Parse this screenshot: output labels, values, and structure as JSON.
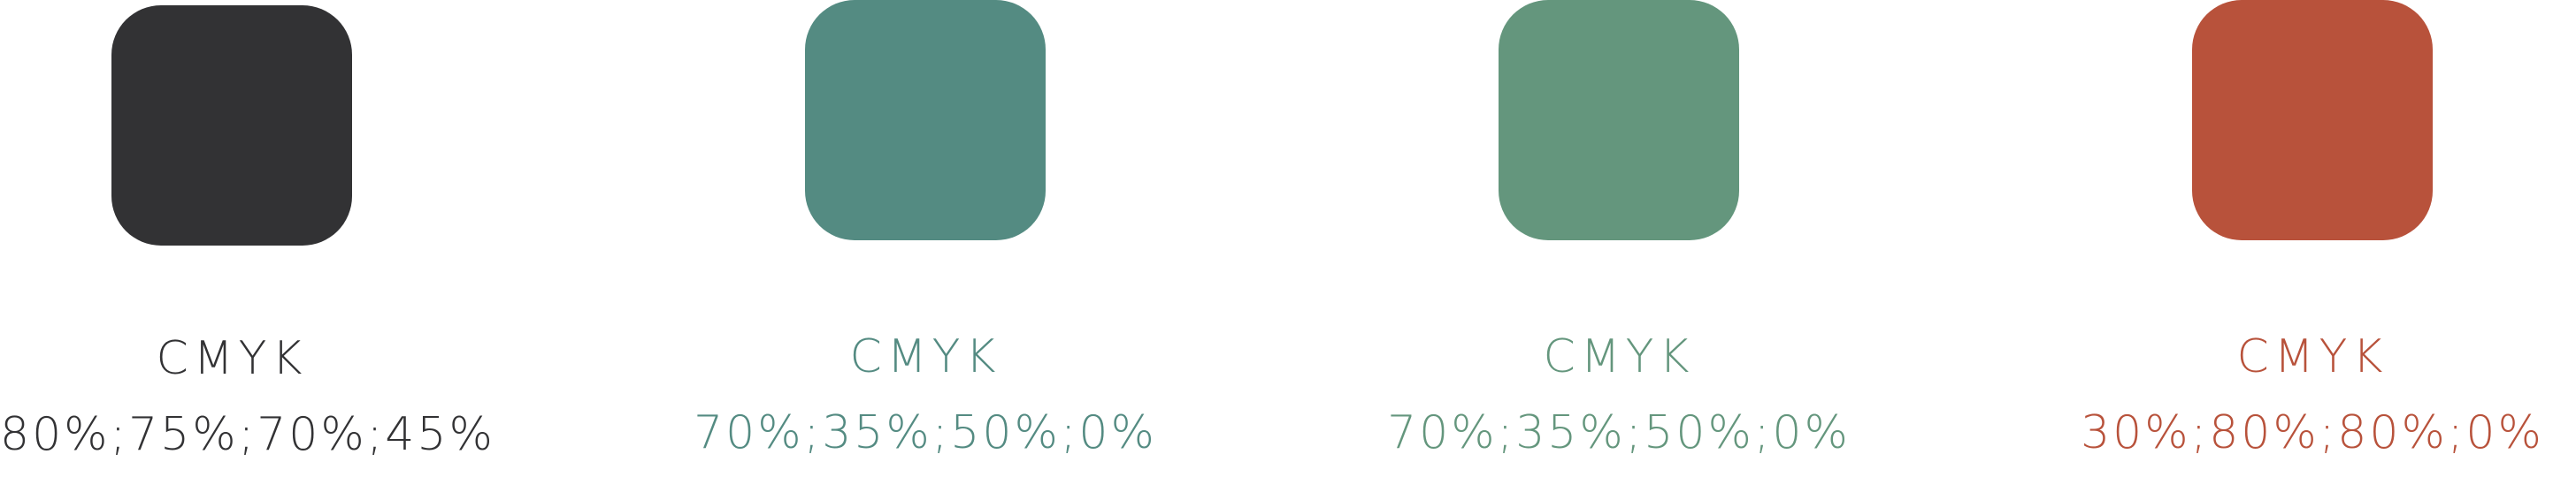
{
  "swatches": [
    {
      "color": "#323234",
      "model": "CMYK",
      "values": "80%;75%;70%;45%"
    },
    {
      "color": "#548b82",
      "model": "CMYK",
      "values": "70%;35%;50%;0%"
    },
    {
      "color": "#64967d",
      "model": "CMYK",
      "values": "70%;35%;50%;0%"
    },
    {
      "color": "#b8523b",
      "model": "CMYK",
      "values": "30%;80%;80%;0%"
    }
  ]
}
